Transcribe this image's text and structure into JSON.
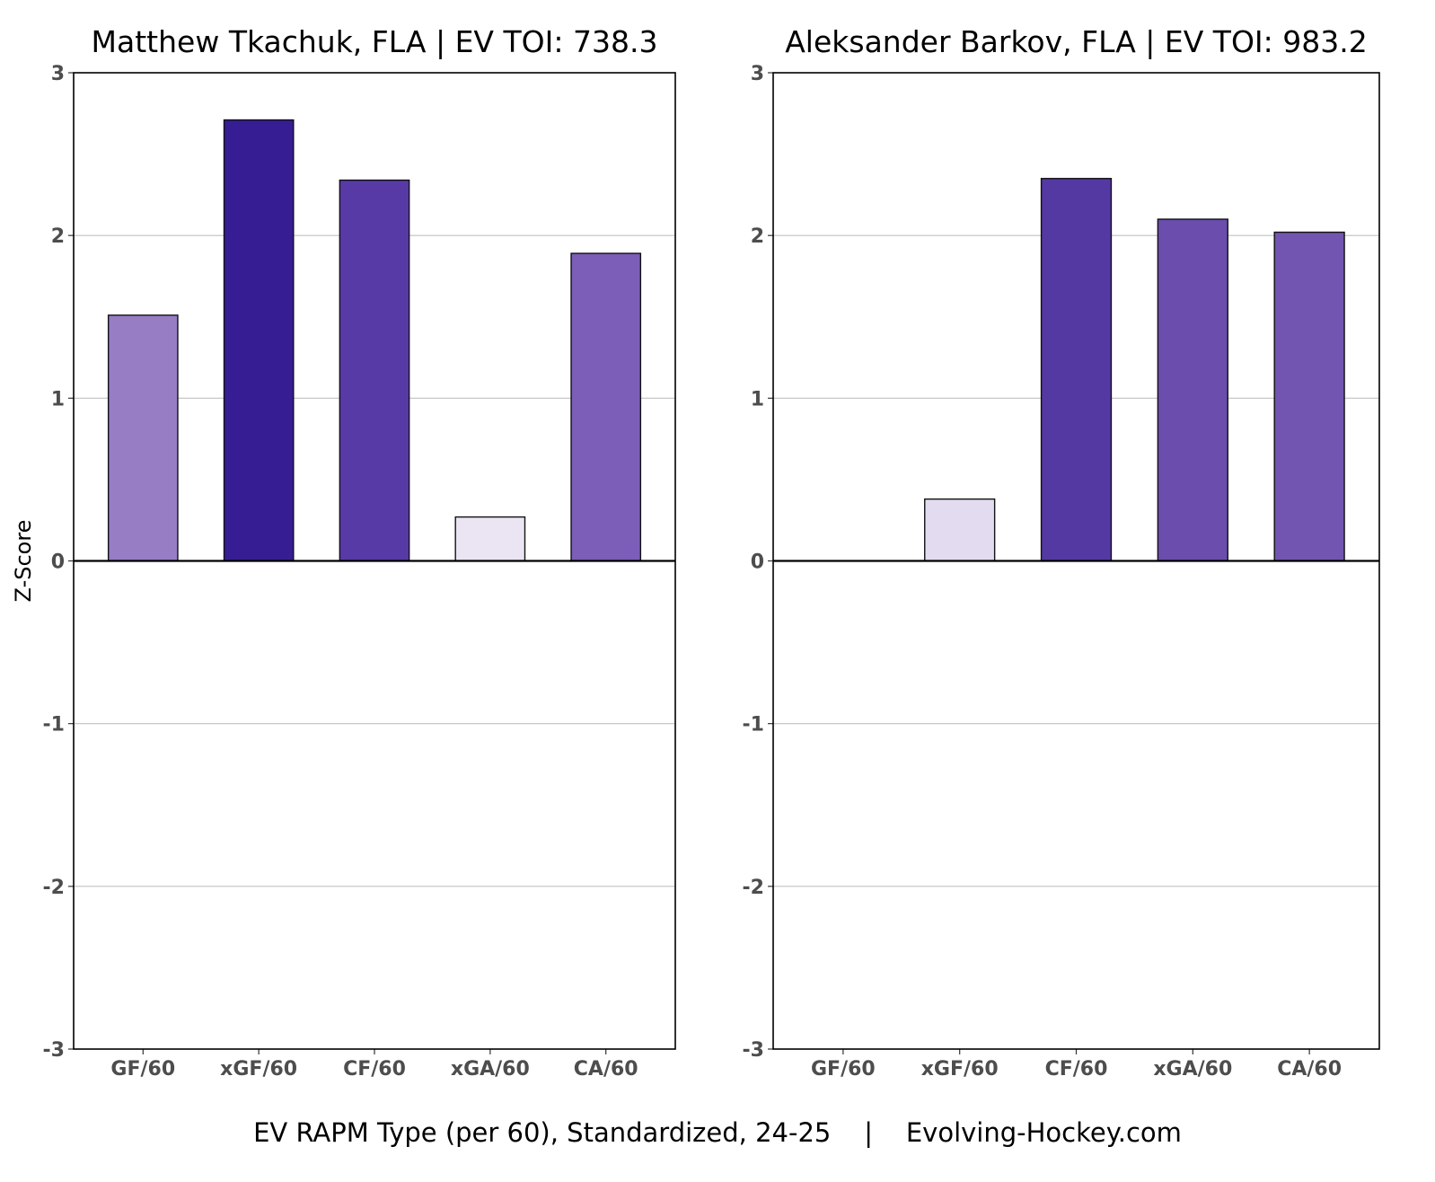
{
  "chart_data": [
    {
      "type": "bar",
      "title": "Matthew Tkachuk, FLA  |  EV TOI: 738.3",
      "ylabel": "Z-Score",
      "xlabel": "",
      "categories": [
        "GF/60",
        "xGF/60",
        "CF/60",
        "xGA/60",
        "CA/60"
      ],
      "values": [
        1.51,
        2.71,
        2.34,
        0.27,
        1.89
      ],
      "colors": [
        "#967dc4",
        "#371d93",
        "#583aa6",
        "#ebe5f3",
        "#7c5db7"
      ],
      "ylim": [
        -3,
        3
      ],
      "yticks": [
        "3",
        "2",
        "1",
        "0",
        "-1",
        "-2",
        "-3"
      ],
      "grid": true,
      "legend": "none"
    },
    {
      "type": "bar",
      "title": "Aleksander Barkov, FLA  |  EV TOI: 983.2",
      "ylabel": "",
      "xlabel": "",
      "categories": [
        "GF/60",
        "xGF/60",
        "CF/60",
        "xGA/60",
        "CA/60"
      ],
      "values": [
        0.0,
        0.38,
        2.35,
        2.1,
        2.02
      ],
      "colors": [
        "#ffffff",
        "#e3dcf0",
        "#5439a3",
        "#6a4dad",
        "#7255b1"
      ],
      "ylim": [
        -3,
        3
      ],
      "yticks": [
        "3",
        "2",
        "1",
        "0",
        "-1",
        "-2",
        "-3"
      ],
      "grid": true,
      "legend": "none"
    }
  ],
  "caption": "EV RAPM Type (per 60), Standardized, 24-25    |    Evolving-Hockey.com"
}
